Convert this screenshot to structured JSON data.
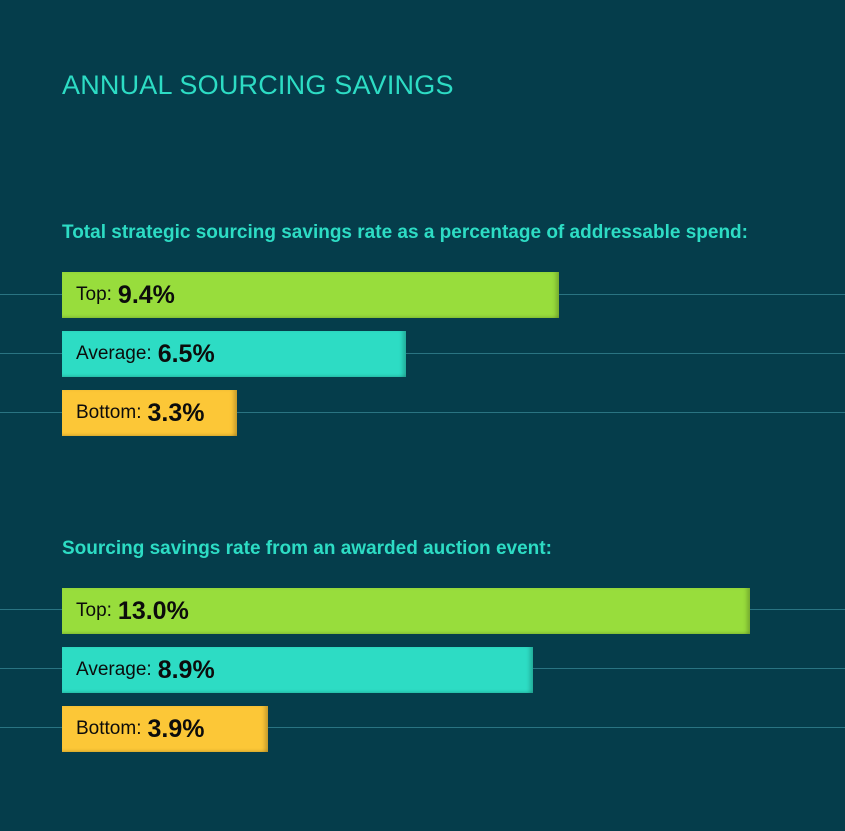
{
  "page": {
    "title": "ANNUAL SOURCING SAVINGS"
  },
  "colors": {
    "background": "#053d4b",
    "heading": "#2ddcc4",
    "top": "#98dd3c",
    "average": "#2ddcc4",
    "bottom": "#fcc737",
    "guide": "#2a7482"
  },
  "chart_data": [
    {
      "type": "bar",
      "orientation": "horizontal",
      "title": "Total strategic sourcing savings rate as a percentage of addressable spend:",
      "unit": "%",
      "xlim": [
        0,
        14.8
      ],
      "categories": [
        "Top",
        "Average",
        "Bottom"
      ],
      "labels": [
        "Top:",
        "Average:",
        "Bottom:"
      ],
      "values": [
        9.4,
        6.5,
        3.3
      ],
      "value_labels": [
        "9.4%",
        "6.5%",
        "3.3%"
      ]
    },
    {
      "type": "bar",
      "orientation": "horizontal",
      "title": "Sourcing savings rate from an awarded auction event:",
      "unit": "%",
      "xlim": [
        0,
        14.8
      ],
      "categories": [
        "Top",
        "Average",
        "Bottom"
      ],
      "labels": [
        "Top:",
        "Average:",
        "Bottom:"
      ],
      "values": [
        13.0,
        8.9,
        3.9
      ],
      "value_labels": [
        "13.0%",
        "8.9%",
        "3.9%"
      ]
    }
  ]
}
